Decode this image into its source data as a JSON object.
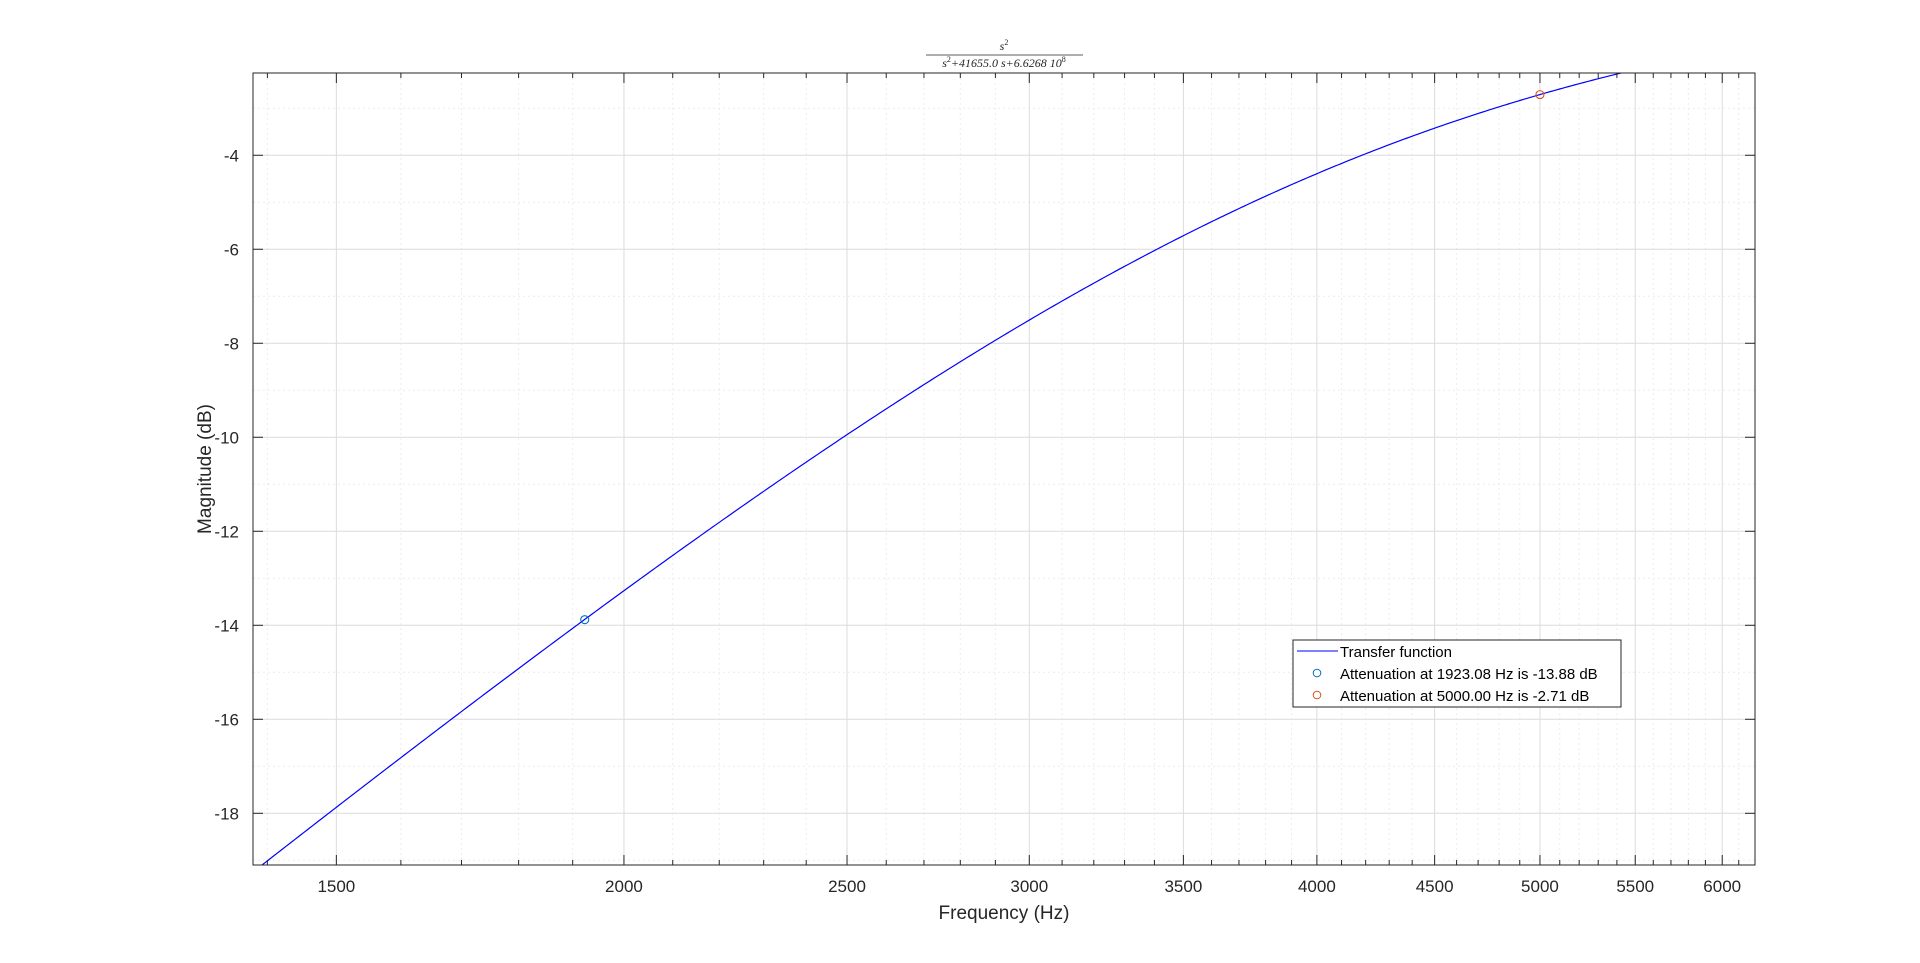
{
  "chart_data": {
    "type": "line",
    "title": {
      "numerator": "s",
      "numerator_sup": "2",
      "denominator_parts": [
        {
          "text": "s",
          "sup": "2"
        },
        {
          "text": "+41655.0 s+6.6268 10",
          "sup": "8"
        }
      ]
    },
    "xlabel": "Frequency (Hz)",
    "ylabel": "Magnitude (dB)",
    "x_scale": "log",
    "xlim": [
      1380,
      6200
    ],
    "ylim": [
      -19.1,
      -2.25
    ],
    "grid": true,
    "minor_grid": true,
    "x_ticks": [
      1500,
      2000,
      2500,
      3000,
      3500,
      4000,
      4500,
      5000,
      5500,
      6000
    ],
    "x_tick_labels": [
      "1500",
      "2000",
      "2500",
      "3000",
      "3500",
      "4000",
      "4500",
      "5000",
      "5500",
      "6000"
    ],
    "x_minor_ticks": [
      1400,
      1600,
      1700,
      1800,
      1900,
      2100,
      2200,
      2300,
      2400,
      2600,
      2700,
      2800,
      2900,
      3100,
      3200,
      3300,
      3400,
      3600,
      3700,
      3800,
      3900,
      4100,
      4200,
      4300,
      4400,
      4600,
      4700,
      4800,
      4900,
      5100,
      5200,
      5300,
      5400,
      5600,
      5700,
      5800,
      5900,
      6100
    ],
    "y_ticks": [
      -18,
      -16,
      -14,
      -12,
      -10,
      -8,
      -6,
      -4
    ],
    "y_tick_labels": [
      "-18",
      "-16",
      "-14",
      "-12",
      "-10",
      "-8",
      "-6",
      "-4"
    ],
    "y_minor_ticks": [
      -19,
      -17,
      -15,
      -13,
      -11,
      -9,
      -7,
      -5,
      -3
    ],
    "transfer": {
      "a1": 41655.0,
      "a0": 662680000
    },
    "series": [
      {
        "name": "Transfer function",
        "color": "#0000ff",
        "kind": "line",
        "x_range": [
          1380,
          6200
        ]
      },
      {
        "name": "Attenuation at 1923.08 Hz is -13.88 dB",
        "color": "#0072bd",
        "kind": "marker",
        "x": 1923.08,
        "y": -13.88
      },
      {
        "name": "Attenuation at 5000.00 Hz is -2.71 dB",
        "color": "#d95319",
        "kind": "marker",
        "x": 5000.0,
        "y": -2.71
      }
    ],
    "legend_position": "lower-right"
  }
}
